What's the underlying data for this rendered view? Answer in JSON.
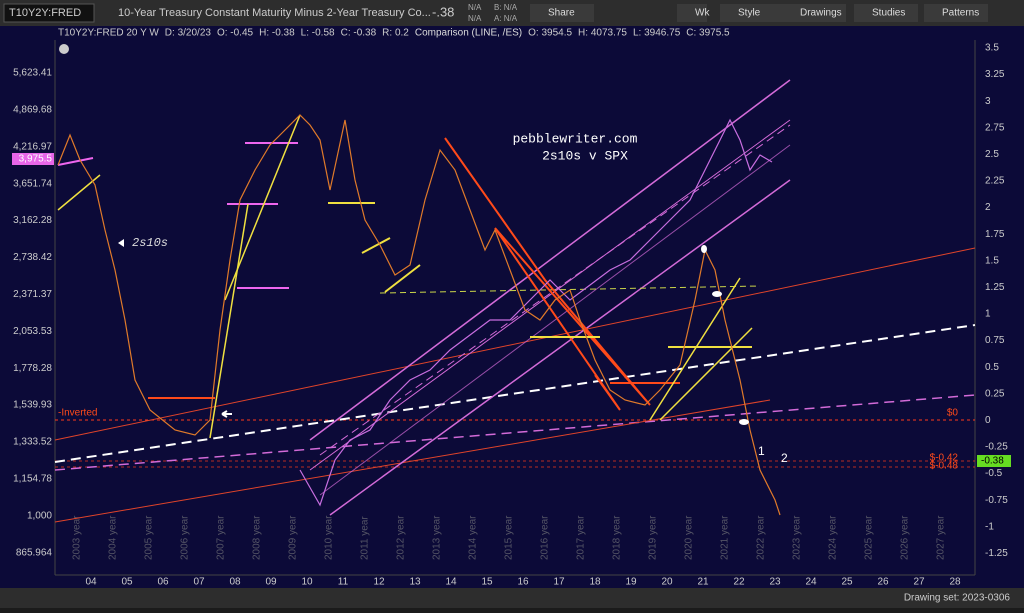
{
  "toolbar": {
    "symbol": "T10Y2Y:FRED",
    "description": "10-Year Treasury Constant Maturity Minus 2-Year Treasury Co...",
    "change": "-.38",
    "bid": "B: N/A",
    "ask": "A: N/A",
    "size_bid": "N/A",
    "size_ask": "N/A",
    "buttons": [
      "Share",
      "Wk",
      "Style",
      "Drawings",
      "Studies",
      "Patterns"
    ]
  },
  "info": [
    "T10Y2Y:FRED 20 Y W",
    "D: 3/20/23",
    "O: -0.45",
    "H: -0.38",
    "L: -0.58",
    "C: -0.38",
    "R: 0.2",
    "Comparison (LINE, /ES)",
    "O: 3954.5",
    "H: 4073.75",
    "L: 3946.75",
    "C: 3975.5"
  ],
  "left_axis": {
    "labels": [
      "5,623.41",
      "4,869.68",
      "4,216.97",
      "3,651.74",
      "3,162.28",
      "2,738.42",
      "2,371.37",
      "2,053.53",
      "1,778.28",
      "1,539.93",
      "1,333.52",
      "1,154.78",
      "1,000",
      "865.964"
    ],
    "current": "3,975.5"
  },
  "right_axis": {
    "labels": [
      "3.5",
      "3.25",
      "3",
      "2.75",
      "2.5",
      "2.25",
      "2",
      "1.75",
      "1.5",
      "1.25",
      "1",
      "0.75",
      "0.5",
      "0.25",
      "0",
      "-0.25",
      "-0.5",
      "-0.75",
      "-1",
      "-1.25"
    ],
    "current": "-0.38"
  },
  "x_axis": {
    "labels": [
      "04",
      "05",
      "06",
      "07",
      "08",
      "09",
      "10",
      "11",
      "12",
      "13",
      "14",
      "15",
      "16",
      "17",
      "18",
      "19",
      "20",
      "21",
      "22",
      "23",
      "24",
      "25",
      "26",
      "27",
      "28"
    ],
    "years": [
      "2003 year",
      "2004 year",
      "2005 year",
      "2006 year",
      "2007 year",
      "2008 year",
      "2009 year",
      "2010 year",
      "2011 year",
      "2012 year",
      "2013 year",
      "2014 year",
      "2015 year",
      "2016 year",
      "2017 year",
      "2018 year",
      "2019 year",
      "2020 year",
      "2021 year",
      "2022 year",
      "2023 year",
      "2024 year",
      "2025 year",
      "2026 year",
      "2027 year"
    ]
  },
  "annotations": {
    "site": "pebblewriter.com",
    "subtitle": "2s10s v SPX",
    "series_label": "2s10s",
    "inverted": "-Inverted",
    "zero": "$0",
    "level1": "$-0.42",
    "level2": "$-0.48",
    "mark1": "1",
    "mark2": "2"
  },
  "footer": {
    "drawing_set": "Drawing set: 2023-0306"
  }
}
